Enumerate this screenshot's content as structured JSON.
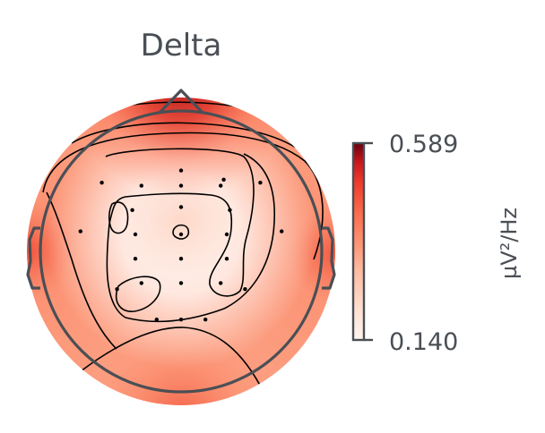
{
  "chart_data": {
    "type": "heatmap",
    "title": "Delta",
    "colorbar": {
      "label": "µV²/Hz",
      "min": 0.14,
      "max": 0.589,
      "tick_labels": [
        "0.589",
        "0.140"
      ],
      "colormap": "Reds"
    },
    "sensors": [
      {
        "x": 0.14,
        "y": 0.18
      },
      {
        "x": 0.0,
        "y": 0.21
      },
      {
        "x": -0.26,
        "y": 0.17
      },
      {
        "x": -0.13,
        "y": 0.16
      },
      {
        "x": 0.0,
        "y": 0.16
      },
      {
        "x": 0.13,
        "y": 0.16
      },
      {
        "x": 0.26,
        "y": 0.17
      },
      {
        "x": -0.16,
        "y": 0.08
      },
      {
        "x": 0.0,
        "y": 0.09
      },
      {
        "x": 0.16,
        "y": 0.08
      },
      {
        "x": -0.33,
        "y": 0.01
      },
      {
        "x": -0.15,
        "y": 0.0
      },
      {
        "x": 0.0,
        "y": 0.0
      },
      {
        "x": 0.15,
        "y": 0.0
      },
      {
        "x": 0.33,
        "y": 0.01
      },
      {
        "x": -0.15,
        "y": -0.08
      },
      {
        "x": 0.0,
        "y": -0.08
      },
      {
        "x": 0.15,
        "y": -0.08
      },
      {
        "x": -0.21,
        "y": -0.18
      },
      {
        "x": -0.13,
        "y": -0.16
      },
      {
        "x": 0.0,
        "y": -0.16
      },
      {
        "x": 0.13,
        "y": -0.16
      },
      {
        "x": 0.21,
        "y": -0.18
      },
      {
        "x": -0.08,
        "y": -0.28
      },
      {
        "x": 0.0,
        "y": -0.28
      },
      {
        "x": 0.08,
        "y": -0.28
      }
    ],
    "values_description_from_colors": {
      "frontal_pole": "high",
      "frontal_central": "low",
      "left_temporal": "medium",
      "right_temporal": "medium",
      "occipital": "medium-high"
    }
  },
  "colors": {
    "text": "#4a4f55",
    "head_outline": "#4a4f55",
    "contour": "#000000",
    "low": "#fff5f0",
    "high": "#67000d"
  }
}
